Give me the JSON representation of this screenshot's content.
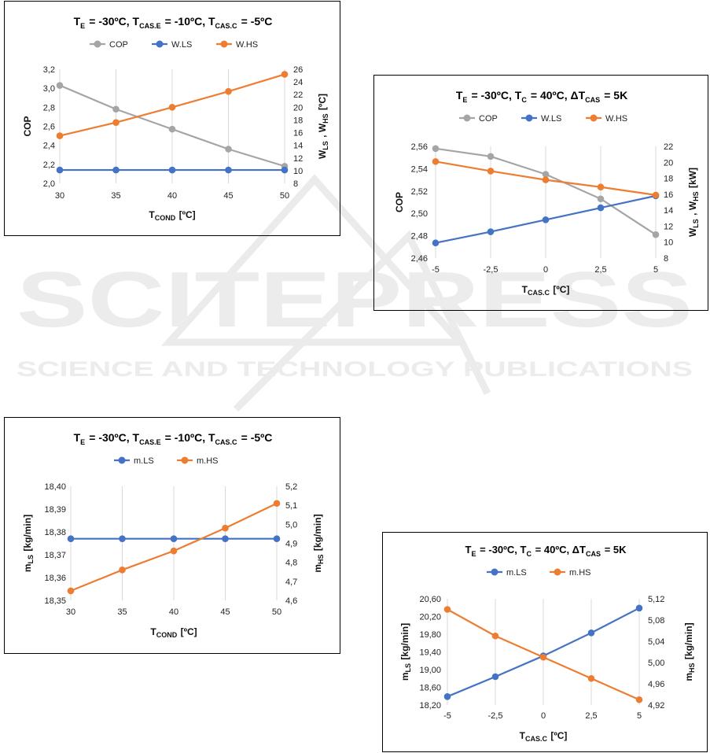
{
  "colors": {
    "gray": "#a5a5a5",
    "blue": "#4472c4",
    "orange": "#ed7d31",
    "grid": "#d9d9d9",
    "watermark": "#e9e9e9"
  },
  "watermark": {
    "title": "SCITEPRESS",
    "subtitle": "SCIENCE AND TECHNOLOGY PUBLICATIONS"
  },
  "chart_data": [
    {
      "type": "line",
      "title": {
        "parts": [
          {
            "t": "T",
            "s": "E"
          },
          {
            "t": " = -30ºC, T",
            "s": "CAS.E"
          },
          {
            "t": " = -10ºC, T",
            "s": "CAS.C"
          },
          {
            "t": " = -5ºC"
          }
        ]
      },
      "categories": [
        "30",
        "35",
        "40",
        "45",
        "50"
      ],
      "x": [
        30,
        35,
        40,
        45,
        50
      ],
      "xlabel": {
        "parts": [
          {
            "t": "T",
            "s": "COND"
          },
          {
            "t": " [ºC]"
          }
        ]
      },
      "ylabel_left": {
        "parts": [
          {
            "t": "COP"
          }
        ]
      },
      "ylabel_right": {
        "parts": [
          {
            "t": "W",
            "s": "LS"
          },
          {
            "t": " , W",
            "s": "HS"
          },
          {
            "t": " [ºC]"
          }
        ]
      },
      "ylim_left": [
        2.0,
        3.2
      ],
      "yticks_left": [
        "2,0",
        "2,2",
        "2,4",
        "2,6",
        "2,8",
        "3,0",
        "3,2"
      ],
      "ylim_right": [
        8,
        26
      ],
      "yticks_right": [
        "8",
        "10",
        "12",
        "14",
        "16",
        "18",
        "20",
        "22",
        "24",
        "26"
      ],
      "series": [
        {
          "name": "COP",
          "color": "#a5a5a5",
          "axis": "left",
          "values": [
            3.03,
            2.78,
            2.57,
            2.36,
            2.18
          ]
        },
        {
          "name": "W.LS",
          "color": "#4472c4",
          "axis": "right",
          "values": [
            10.1,
            10.1,
            10.1,
            10.1,
            10.1
          ]
        },
        {
          "name": "W.HS",
          "color": "#ed7d31",
          "axis": "right",
          "values": [
            15.5,
            17.6,
            20.0,
            22.5,
            25.2
          ]
        }
      ]
    },
    {
      "type": "line",
      "title": {
        "parts": [
          {
            "t": "T",
            "s": "E"
          },
          {
            "t": " = -30ºC, T",
            "s": "C"
          },
          {
            "t": " = 40ºC, ΔT",
            "s": "CAS"
          },
          {
            "t": " = 5K"
          }
        ]
      },
      "categories": [
        "-5",
        "-2,5",
        "0",
        "2,5",
        "5"
      ],
      "x": [
        -5,
        -2.5,
        0,
        2.5,
        5
      ],
      "xlabel": {
        "parts": [
          {
            "t": "T",
            "s": "CAS.C"
          },
          {
            "t": " [ºC]"
          }
        ]
      },
      "ylabel_left": {
        "parts": [
          {
            "t": "COP"
          }
        ]
      },
      "ylabel_right": {
        "parts": [
          {
            "t": "W",
            "s": "LS"
          },
          {
            "t": " , W",
            "s": "HS"
          },
          {
            "t": " [kW]"
          }
        ]
      },
      "ylim_left": [
        2.46,
        2.56
      ],
      "yticks_left": [
        "2,46",
        "2,48",
        "2,50",
        "2,52",
        "2,54",
        "2,56"
      ],
      "ylim_right": [
        8,
        22
      ],
      "yticks_right": [
        "8",
        "10",
        "12",
        "14",
        "16",
        "18",
        "20",
        "22"
      ],
      "series": [
        {
          "name": "COP",
          "color": "#a5a5a5",
          "axis": "left",
          "values": [
            2.558,
            2.551,
            2.535,
            2.513,
            2.481
          ]
        },
        {
          "name": "W.LS",
          "color": "#4472c4",
          "axis": "right",
          "values": [
            9.9,
            11.3,
            12.8,
            14.3,
            15.8
          ]
        },
        {
          "name": "W.HS",
          "color": "#ed7d31",
          "axis": "right",
          "values": [
            20.1,
            18.9,
            17.8,
            16.9,
            15.9
          ]
        }
      ]
    },
    {
      "type": "line",
      "title": {
        "parts": [
          {
            "t": "T",
            "s": "E"
          },
          {
            "t": " = -30ºC, T",
            "s": "CAS.E"
          },
          {
            "t": " = -10ºC, T",
            "s": "CAS.C"
          },
          {
            "t": " = -5ºC"
          }
        ]
      },
      "categories": [
        "30",
        "35",
        "40",
        "45",
        "50"
      ],
      "x": [
        30,
        35,
        40,
        45,
        50
      ],
      "xlabel": {
        "parts": [
          {
            "t": "T",
            "s": "COND"
          },
          {
            "t": " [ºC]"
          }
        ]
      },
      "ylabel_left": {
        "parts": [
          {
            "t": "m",
            "s": "LS"
          },
          {
            "t": " [kg/min]"
          }
        ]
      },
      "ylabel_right": {
        "parts": [
          {
            "t": "m",
            "s": "HS"
          },
          {
            "t": " [kg/min]"
          }
        ]
      },
      "ylim_left": [
        18.35,
        18.4
      ],
      "yticks_left": [
        "18,35",
        "18,36",
        "18,37",
        "18,38",
        "18,39",
        "18,40"
      ],
      "ylim_right": [
        4.6,
        5.2
      ],
      "yticks_right": [
        "4,6",
        "4,7",
        "4,8",
        "4,9",
        "5,0",
        "5,1",
        "5,2"
      ],
      "series": [
        {
          "name": "m.LS",
          "color": "#4472c4",
          "axis": "left",
          "values": [
            18.377,
            18.377,
            18.377,
            18.377,
            18.377
          ]
        },
        {
          "name": "m.HS",
          "color": "#ed7d31",
          "axis": "right",
          "values": [
            4.65,
            4.76,
            4.86,
            4.98,
            5.11
          ]
        }
      ]
    },
    {
      "type": "line",
      "title": {
        "parts": [
          {
            "t": "T",
            "s": "E"
          },
          {
            "t": " = -30ºC, T",
            "s": "C"
          },
          {
            "t": " = 40ºC, ΔT",
            "s": "CAS"
          },
          {
            "t": " = 5K"
          }
        ]
      },
      "categories": [
        "-5",
        "-2,5",
        "0",
        "2,5",
        "5"
      ],
      "x": [
        -5,
        -2.5,
        0,
        2.5,
        5
      ],
      "xlabel": {
        "parts": [
          {
            "t": "T",
            "s": "CAS.C"
          },
          {
            "t": " [ºC]"
          }
        ]
      },
      "ylabel_left": {
        "parts": [
          {
            "t": "m",
            "s": "LS"
          },
          {
            "t": " [kg/min]"
          }
        ]
      },
      "ylabel_right": {
        "parts": [
          {
            "t": "m",
            "s": "HS"
          },
          {
            "t": " [kg/min]"
          }
        ]
      },
      "ylim_left": [
        18.2,
        20.6
      ],
      "yticks_left": [
        "18,20",
        "18,60",
        "19,00",
        "19,40",
        "19,80",
        "20,20",
        "20,60"
      ],
      "ylim_right": [
        4.92,
        5.12
      ],
      "yticks_right": [
        "4,92",
        "4,96",
        "5,00",
        "5,04",
        "5,08",
        "5,12"
      ],
      "series": [
        {
          "name": "m.LS",
          "color": "#4472c4",
          "axis": "left",
          "values": [
            18.39,
            18.84,
            19.31,
            19.83,
            20.39
          ]
        },
        {
          "name": "m.HS",
          "color": "#ed7d31",
          "axis": "right",
          "values": [
            5.1,
            5.05,
            5.01,
            4.97,
            4.93
          ]
        }
      ]
    }
  ]
}
